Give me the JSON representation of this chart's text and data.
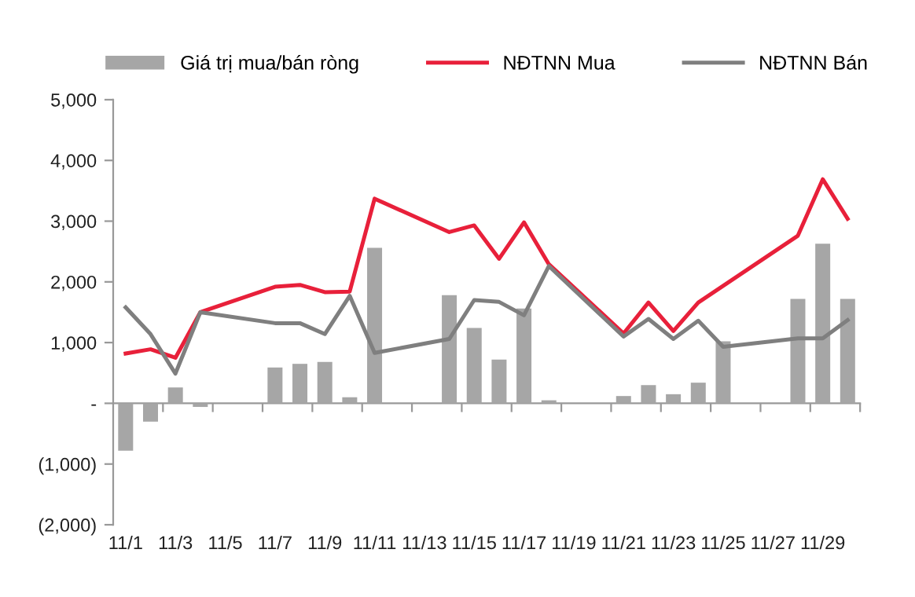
{
  "chart_data": {
    "type": "bar",
    "categories": [
      "11/1",
      null,
      "11/3",
      null,
      "11/5",
      null,
      "11/7",
      null,
      "11/9",
      null,
      "11/11",
      null,
      "11/13",
      null,
      "11/15",
      null,
      "11/17",
      null,
      "11/19",
      null,
      "11/21",
      null,
      "11/23",
      null,
      "11/25",
      null,
      "11/27",
      null,
      "11/29",
      null
    ],
    "series": [
      {
        "name": "Giá trị mua/bán ròng",
        "color": "#a6a6a6",
        "values": [
          -780,
          -300,
          260,
          -60,
          null,
          null,
          590,
          650,
          680,
          100,
          2560,
          null,
          null,
          1780,
          1240,
          720,
          1560,
          50,
          null,
          null,
          120,
          300,
          150,
          340,
          1020,
          null,
          null,
          1720,
          2630,
          1720
        ]
      },
      {
        "name": "NĐTNN Mua",
        "type": "line",
        "color": "#e8203a",
        "values": [
          820,
          890,
          750,
          1500,
          null,
          null,
          1920,
          1950,
          1830,
          1840,
          3370,
          null,
          null,
          2820,
          2930,
          2380,
          2980,
          2290,
          null,
          null,
          1150,
          1660,
          1190,
          1660,
          null,
          null,
          null,
          2760,
          3690,
          3040
        ]
      },
      {
        "name": "NĐTNN Bán",
        "type": "line",
        "color": "#7f7f7f",
        "values": [
          1580,
          1140,
          490,
          1500,
          null,
          null,
          1320,
          1320,
          1140,
          1770,
          830,
          null,
          null,
          1060,
          1700,
          1670,
          1450,
          2260,
          null,
          null,
          1100,
          1390,
          1060,
          1360,
          930,
          null,
          null,
          1070,
          1070,
          1370
        ]
      }
    ],
    "ylim": [
      -2000,
      5000
    ],
    "yticks": [
      {
        "value": -2000,
        "label": "(2,000)"
      },
      {
        "value": -1000,
        "label": "(1,000)"
      },
      {
        "value": 0,
        "label": "-"
      },
      {
        "value": 1000,
        "label": "1,000"
      },
      {
        "value": 2000,
        "label": "2,000"
      },
      {
        "value": 3000,
        "label": "3,000"
      },
      {
        "value": 4000,
        "label": "4,000"
      },
      {
        "value": 5000,
        "label": "5,000"
      }
    ],
    "legend": "top",
    "marker": "none",
    "line_style": "solid"
  }
}
